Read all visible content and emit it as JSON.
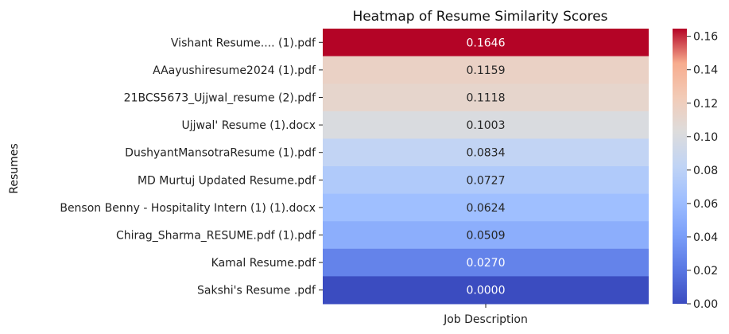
{
  "chart_data": {
    "type": "heatmap",
    "title": "Heatmap of Resume Similarity Scores",
    "xlabel": "",
    "ylabel": "Resumes",
    "columns": [
      "Job Description"
    ],
    "rows": [
      "Vishant Resume.... (1).pdf",
      "AAayushiresume2024 (1).pdf",
      "21BCS5673_Ujjwal_resume (2).pdf",
      "Ujjwal' Resume (1).docx",
      "DushyantMansotraResume (1).pdf",
      "MD Murtuj Updated Resume.pdf",
      "Benson Benny - Hospitality Intern (1) (1).docx",
      "Chirag_Sharma_RESUME.pdf (1).pdf",
      "Kamal Resume.pdf",
      "Sakshi's Resume .pdf"
    ],
    "values": [
      [
        0.1646
      ],
      [
        0.1159
      ],
      [
        0.1118
      ],
      [
        0.1003
      ],
      [
        0.0834
      ],
      [
        0.0727
      ],
      [
        0.0624
      ],
      [
        0.0509
      ],
      [
        0.027
      ],
      [
        0.0
      ]
    ],
    "value_labels": [
      "0.1646",
      "0.1159",
      "0.1118",
      "0.1003",
      "0.0834",
      "0.0727",
      "0.0624",
      "0.0509",
      "0.0270",
      "0.0000"
    ],
    "colormap": "coolwarm",
    "vmin": 0,
    "vmax": 0.1646,
    "colorbar_ticks": [
      0,
      0.02,
      0.04,
      0.06,
      0.08,
      0.1,
      0.12,
      0.14,
      0.16
    ],
    "colorbar_tick_labels": [
      "0.00",
      "0.02",
      "0.04",
      "0.06",
      "0.08",
      "0.10",
      "0.12",
      "0.14",
      "0.16"
    ]
  }
}
